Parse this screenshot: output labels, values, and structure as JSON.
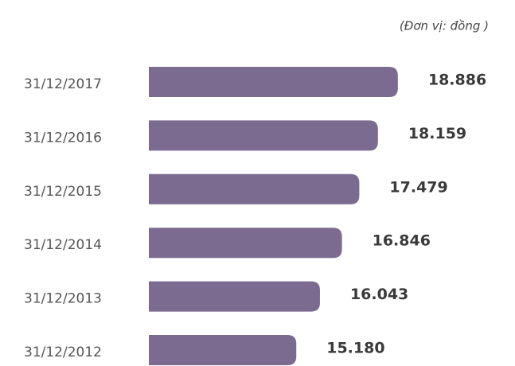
{
  "chart_data": {
    "type": "bar",
    "orientation": "horizontal",
    "subtitle": "(Đơn vị: đồng )",
    "categories": [
      "31/12/2017",
      "31/12/2016",
      "31/12/2015",
      "31/12/2014",
      "31/12/2013",
      "31/12/2012"
    ],
    "values": [
      18886,
      18159,
      17479,
      16846,
      16043,
      15180
    ],
    "value_labels": [
      "18.886",
      "18.159",
      "17.479",
      "16.846",
      "16.043",
      "15.180"
    ],
    "color": "#7c6b91",
    "xlim": [
      9800,
      19500
    ]
  }
}
